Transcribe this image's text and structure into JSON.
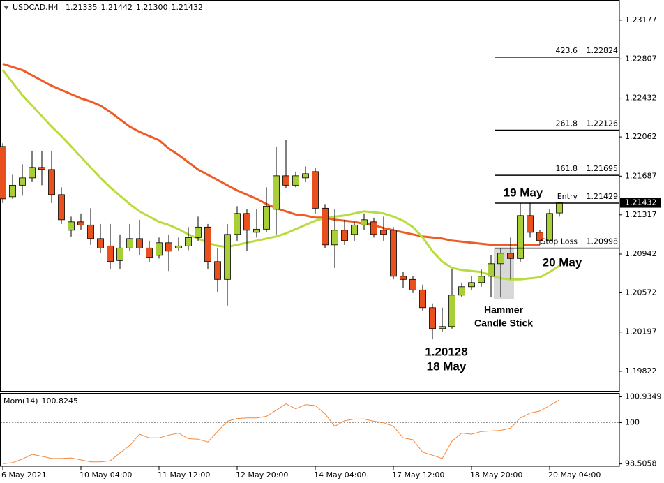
{
  "chart_data": [
    {
      "type": "candlestick",
      "title": "USDCAD,H4",
      "categories": [
        "6 May 2021",
        null,
        null,
        null,
        null,
        null,
        null,
        null,
        "10 May 04:00",
        null,
        null,
        null,
        null,
        null,
        null,
        null,
        "11 May 12:00",
        null,
        null,
        null,
        null,
        null,
        null,
        null,
        "12 May 20:00",
        null,
        null,
        null,
        null,
        null,
        null,
        null,
        "14 May 04:00",
        null,
        null,
        null,
        null,
        null,
        null,
        null,
        "17 May 12:00",
        null,
        null,
        null,
        null,
        null,
        null,
        null,
        "18 May 20:00",
        null,
        null,
        null,
        null,
        null,
        null,
        null,
        "20 May 04:00",
        null
      ],
      "open": [
        1.2197,
        1.2149,
        1.216,
        1.2167,
        1.2177,
        1.2175,
        1.2151,
        1.2117,
        1.2125,
        1.2122,
        1.2109,
        1.2102,
        1.2088,
        1.21,
        1.2109,
        1.21,
        1.2093,
        1.2105,
        1.21,
        1.2102,
        1.211,
        1.212,
        1.2087,
        1.207,
        1.2113,
        1.2133,
        1.2115,
        1.2118,
        1.2137,
        1.2169,
        1.216,
        1.2167,
        1.2173,
        1.2138,
        1.2103,
        1.2117,
        1.2113,
        1.2122,
        1.2125,
        1.2117,
        1.2117,
        1.2073,
        1.207,
        1.206,
        1.2043,
        1.2023,
        1.2025,
        1.2055,
        1.2063,
        1.2067,
        1.2073,
        1.2085,
        1.2095,
        1.209,
        1.2131,
        1.2115,
        1.2107,
        1.21335
      ],
      "high": [
        1.22,
        1.217,
        1.218,
        1.2193,
        1.2193,
        1.2193,
        1.2158,
        1.213,
        1.2133,
        1.2138,
        1.2123,
        1.2123,
        1.2113,
        1.2123,
        1.2127,
        1.2107,
        1.211,
        1.2113,
        1.211,
        1.212,
        1.213,
        1.2123,
        1.21,
        1.2123,
        1.214,
        1.2137,
        1.2137,
        1.2158,
        1.2197,
        1.2203,
        1.2173,
        1.2178,
        1.2177,
        1.2142,
        1.2137,
        1.2127,
        1.2125,
        1.2133,
        1.2129,
        1.213,
        1.212,
        1.2077,
        1.2073,
        1.2065,
        1.2047,
        1.2043,
        1.208,
        1.2067,
        1.2073,
        1.208,
        1.2093,
        1.21,
        1.211,
        1.2143,
        1.2143,
        1.2117,
        1.2137,
        1.21442
      ],
      "low": [
        1.2143,
        1.2147,
        1.215,
        1.2163,
        1.216,
        1.2143,
        1.2123,
        1.2111,
        1.2117,
        1.2103,
        1.2095,
        1.208,
        1.208,
        1.2097,
        1.2093,
        1.2087,
        1.209,
        1.2078,
        1.2097,
        1.2098,
        1.2107,
        1.208,
        1.2058,
        1.2045,
        1.2107,
        1.2097,
        1.211,
        1.2115,
        1.2113,
        1.2157,
        1.2158,
        1.2163,
        1.2133,
        1.21,
        1.2081,
        1.2103,
        1.2107,
        1.2117,
        1.211,
        1.2107,
        1.207,
        1.2062,
        1.2057,
        1.204,
        1.20128,
        1.202,
        1.2023,
        1.2053,
        1.206,
        1.2063,
        1.2053,
        1.2053,
        1.207,
        1.2087,
        1.211,
        1.2103,
        1.2107,
        1.213
      ],
      "low_labels": [
        null,
        null,
        null,
        null,
        null,
        null,
        null,
        null,
        null,
        null,
        null,
        null,
        null,
        null,
        null,
        null,
        null,
        null,
        null,
        null,
        null,
        null,
        null,
        null,
        null,
        null,
        null,
        null,
        null,
        null,
        null,
        null,
        null,
        null,
        null,
        null,
        null,
        null,
        null,
        null,
        null,
        null,
        null,
        null,
        null,
        null,
        null,
        null,
        null,
        null,
        null,
        null,
        null,
        null,
        null,
        null,
        null,
        "1.21300"
      ],
      "close": [
        1.2147,
        1.216,
        1.2167,
        1.2177,
        1.2175,
        1.2151,
        1.2127,
        1.2125,
        1.2122,
        1.2109,
        1.21,
        1.2087,
        1.21,
        1.2109,
        1.21,
        1.2091,
        1.2105,
        1.2097,
        1.2102,
        1.211,
        1.212,
        1.2087,
        1.207,
        1.2113,
        1.2133,
        1.2117,
        1.2118,
        1.214,
        1.2169,
        1.216,
        1.2169,
        1.2171,
        1.2138,
        1.2103,
        1.2117,
        1.2107,
        1.2122,
        1.2127,
        1.2113,
        1.2113,
        1.2073,
        1.207,
        1.206,
        1.2043,
        1.2023,
        1.2025,
        1.2055,
        1.2063,
        1.2067,
        1.2073,
        1.2085,
        1.2095,
        1.209,
        1.2131,
        1.2115,
        1.2107,
        1.2133,
        1.21432
      ],
      "up_color": "#a8cf38",
      "down_color": "#e8501e",
      "ylim": [
        1.19635,
        1.23363
      ],
      "yticks": [
        1.19822,
        1.20197,
        1.20572,
        1.20942,
        1.21317,
        1.21687,
        1.22062,
        1.22432,
        1.22807,
        1.23177
      ],
      "moving_averages": [
        {
          "color": "#ef5b24",
          "values": [
            1.2276,
            1.2273,
            1.227,
            1.2265,
            1.226,
            1.2255,
            1.2251,
            1.2247,
            1.2243,
            1.224,
            1.2236,
            1.223,
            1.2223,
            1.2216,
            1.2211,
            1.2207,
            1.2203,
            1.2195,
            1.2189,
            1.2182,
            1.2175,
            1.217,
            1.2165,
            1.216,
            1.2155,
            1.2151,
            1.2147,
            1.2142,
            1.2138,
            1.2135,
            1.2132,
            1.2131,
            1.2129,
            1.2129,
            1.2127,
            1.2126,
            1.2125,
            1.2123,
            1.2122,
            1.2119,
            1.2117,
            1.2115,
            1.2113,
            1.2111,
            1.211,
            1.2109,
            1.2107,
            1.2106,
            1.2105,
            1.2104,
            1.2103,
            1.2103,
            1.2103,
            1.2103,
            1.2103,
            1.2103,
            null,
            null
          ]
        },
        {
          "color": "#b8dc3e",
          "values": [
            1.227,
            1.2258,
            1.2246,
            1.2236,
            1.2226,
            1.2216,
            1.2207,
            1.2197,
            1.2187,
            1.2177,
            1.2167,
            1.2158,
            1.215,
            1.2142,
            1.2135,
            1.213,
            1.2125,
            1.2122,
            1.2118,
            1.2113,
            1.2109,
            1.2105,
            1.2102,
            1.2101,
            1.2103,
            1.2105,
            1.2107,
            1.2109,
            1.2111,
            1.2114,
            1.2118,
            1.2122,
            1.2126,
            1.2129,
            1.213,
            1.2131,
            1.2133,
            1.2135,
            1.2134,
            1.2133,
            1.213,
            1.2126,
            1.212,
            1.211,
            1.2097,
            1.2087,
            1.2081,
            1.2079,
            1.2078,
            1.2077,
            1.2074,
            1.2071,
            1.207,
            1.207,
            1.2071,
            1.2072,
            1.2077,
            1.2083
          ]
        }
      ],
      "levels": [
        {
          "label": "423.6",
          "value": 1.22824
        },
        {
          "label": "261.8",
          "value": 1.22126
        },
        {
          "label": "161.8",
          "value": 1.21695
        },
        {
          "label": "Entry",
          "value": 1.21429
        },
        {
          "label": "Stop Loss",
          "value": 1.20998
        }
      ],
      "annotations": [
        "19 May",
        "20 May",
        "Hammer",
        "Candle Stick",
        "18 May"
      ]
    },
    {
      "type": "line",
      "title": "Mom(14)",
      "color": "#f3873a",
      "values": [
        98.51,
        98.55,
        98.68,
        98.85,
        98.78,
        98.7,
        98.7,
        98.72,
        98.65,
        98.58,
        98.58,
        98.62,
        98.9,
        99.17,
        99.58,
        99.45,
        99.45,
        99.55,
        99.62,
        99.42,
        99.4,
        99.3,
        99.68,
        100.05,
        100.15,
        100.17,
        100.17,
        100.23,
        100.45,
        100.68,
        100.5,
        100.65,
        100.62,
        100.32,
        99.87,
        100.07,
        100.13,
        100.13,
        100.05,
        100,
        99.87,
        99.45,
        99.38,
        98.93,
        98.82,
        98.7,
        99.33,
        99.62,
        99.58,
        99.68,
        99.7,
        99.72,
        99.8,
        100.17,
        100.35,
        100.42,
        100.62,
        100.8245
      ],
      "ylim": [
        98.42,
        101.05
      ],
      "yticks": [
        98.5058,
        100,
        100.9349
      ],
      "reference_line": 100
    }
  ]
}
